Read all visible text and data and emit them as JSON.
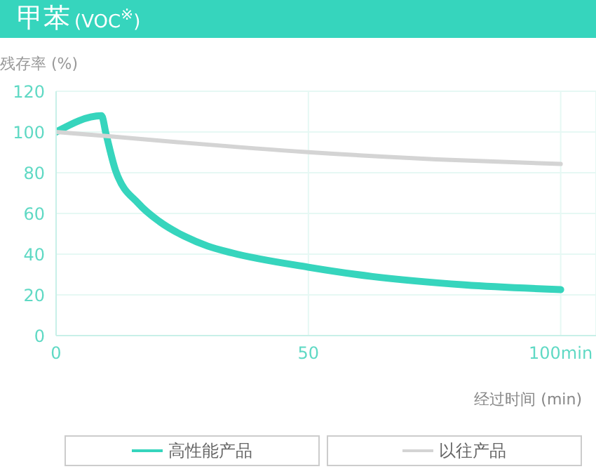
{
  "chart_data": {
    "type": "line",
    "title": "甲苯",
    "subtitle": "(VOC$^{※}$)",
    "ylabel": "残存率 (%)",
    "xlabel": "经过时间 (min)",
    "xlim": [
      0,
      107
    ],
    "xticks": [
      0,
      50,
      {
        "value": 100,
        "label": "100min"
      }
    ],
    "ylim": [
      0,
      120
    ],
    "yticks": [
      0,
      20,
      40,
      60,
      80,
      100,
      120
    ],
    "grid": true,
    "legend": "bottom",
    "marker": "none",
    "series": [
      {
        "name": "高性能产品",
        "color": "#36d5bd",
        "x": [
          0,
          9,
          9.9,
          11.8,
          16.4,
          20.5,
          25.6,
          30,
          34.9,
          50,
          62.7,
          81,
          100
        ],
        "values": [
          100,
          108,
          99,
          81,
          64.7,
          56,
          48.6,
          44,
          40.6,
          33.6,
          29,
          24.9,
          22.6
        ]
      },
      {
        "name": "以往产品",
        "color": "#d4d4d4",
        "x": [
          0,
          10,
          25.6,
          50,
          81,
          100
        ],
        "values": [
          100,
          98,
          94.7,
          90.1,
          86,
          84.3
        ]
      }
    ]
  }
}
